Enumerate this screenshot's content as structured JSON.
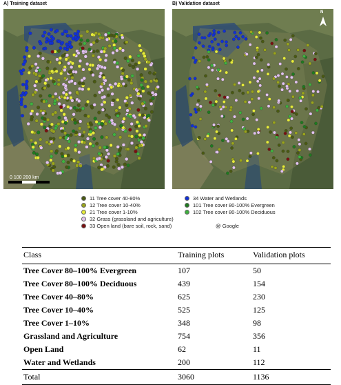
{
  "panels": {
    "a_title": "A) Training dataset",
    "b_title": "B) Validation dataset"
  },
  "north": "N",
  "scale": {
    "label": "0   100   200 km"
  },
  "legend": [
    {
      "label": "11 Tree cover 40-80%",
      "color": "#4a5a12"
    },
    {
      "label": "12 Tree cover 10-40%",
      "color": "#9aa51c"
    },
    {
      "label": "21 Tree cover 1-10%",
      "color": "#e6ec3a"
    },
    {
      "label": "32 Grass (grassland and agriculture)",
      "color": "#e2c3ef"
    },
    {
      "label": "33 Open land (bare soil, rock, sand)",
      "color": "#7a1010"
    },
    {
      "label": "34 Water and Wetlands",
      "color": "#1030d8"
    },
    {
      "label": "101 Tree cover 80-100% Evergreen",
      "color": "#1f7a1f"
    },
    {
      "label": "102 Tree cover 80-100% Deciduous",
      "color": "#3fb13f"
    }
  ],
  "credit": "@ Google",
  "table": {
    "headers": [
      "Class",
      "Training plots",
      "Validation plots"
    ],
    "rows": [
      [
        "Tree Cover 80–100% Evergreen",
        "107",
        "50"
      ],
      [
        "Tree Cover 80–100% Deciduous",
        "439",
        "154"
      ],
      [
        "Tree Cover 40–80%",
        "625",
        "230"
      ],
      [
        "Tree Cover 10–40%",
        "525",
        "125"
      ],
      [
        "Tree Cover 1–10%",
        "348",
        "98"
      ],
      [
        "Grassland and Agriculture",
        "754",
        "356"
      ],
      [
        "Open Land",
        "62",
        "11"
      ],
      [
        "Water and Wetlands",
        "200",
        "112"
      ]
    ],
    "total": [
      "Total",
      "3060",
      "1136"
    ]
  }
}
